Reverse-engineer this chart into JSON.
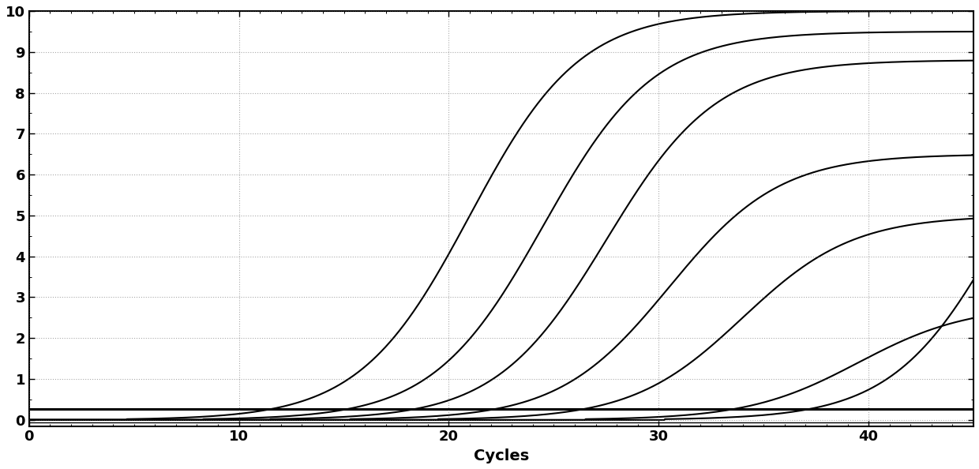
{
  "title": "",
  "xlabel": "Cycles",
  "ylabel": "",
  "xlim": [
    0,
    45
  ],
  "ylim": [
    -0.15,
    10
  ],
  "yticks": [
    0,
    1,
    2,
    3,
    4,
    5,
    6,
    7,
    8,
    9,
    10
  ],
  "xticks": [
    0,
    10,
    20,
    30,
    40
  ],
  "background_color": "#ffffff",
  "line_color": "#000000",
  "threshold_y": 0.27,
  "curves": [
    {
      "midpoint": 21.0,
      "max": 10.0,
      "k": 0.38
    },
    {
      "midpoint": 24.5,
      "max": 9.5,
      "k": 0.38
    },
    {
      "midpoint": 27.5,
      "max": 8.8,
      "k": 0.38
    },
    {
      "midpoint": 30.5,
      "max": 6.5,
      "k": 0.38
    },
    {
      "midpoint": 34.0,
      "max": 5.0,
      "k": 0.38
    },
    {
      "midpoint": 39.5,
      "max": 2.8,
      "k": 0.38
    },
    {
      "midpoint": 46.5,
      "max": 9.5,
      "k": 0.38
    }
  ],
  "xlabel_fontsize": 14,
  "xlabel_fontweight": "bold",
  "tick_fontsize": 13,
  "tick_fontweight": "bold",
  "linewidth": 1.5,
  "threshold_linewidth": 2.2,
  "grid_color": "#555555",
  "grid_alpha": 0.5,
  "grid_linestyle": ":"
}
